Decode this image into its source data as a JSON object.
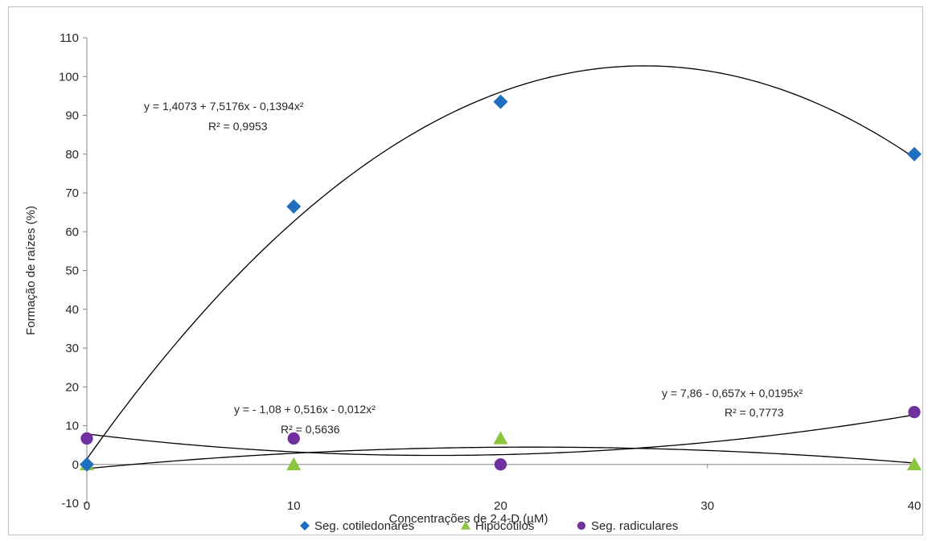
{
  "chart_data": {
    "type": "scatter",
    "xlabel": "Concentrações de 2,4-D (µM)",
    "ylabel": "Formação de raízes (%)",
    "xlim": [
      0,
      40
    ],
    "ylim": [
      -10,
      110
    ],
    "x_ticks": [
      0,
      10,
      20,
      30,
      40
    ],
    "y_ticks": [
      -10,
      0,
      10,
      20,
      30,
      40,
      50,
      60,
      70,
      80,
      90,
      100,
      110
    ],
    "grid": false,
    "legend_position": "bottom",
    "series": [
      {
        "name": "Seg. cotiledonares",
        "marker": "diamond",
        "color": "#1f6fc0",
        "x": [
          0,
          10,
          20,
          40
        ],
        "y": [
          0,
          66.5,
          93.5,
          80
        ],
        "trend": {
          "coefficients": [
            1.4073,
            7.5176,
            -0.1394
          ],
          "equation": "y = 1,4073 + 7,5176x  - 0,1394x²",
          "r2": "R² = 0,9953"
        }
      },
      {
        "name": "Hipocótilos",
        "marker": "triangle",
        "color": "#8cc63f",
        "x": [
          0,
          10,
          20,
          40
        ],
        "y": [
          0,
          0,
          6.7,
          0
        ],
        "trend": {
          "coefficients": [
            -1.08,
            0.516,
            -0.012
          ],
          "equation": "y = - 1,08 + 0,516x  - 0,012x²",
          "r2": "R² = 0,5636"
        }
      },
      {
        "name": "Seg. radiculares",
        "marker": "circle",
        "color": "#7030a0",
        "x": [
          0,
          10,
          20,
          40
        ],
        "y": [
          6.7,
          6.7,
          0,
          13.5
        ],
        "trend": {
          "coefficients": [
            7.86,
            -0.657,
            0.0195
          ],
          "equation": "y =  7,86 - 0,657x + 0,0195x²",
          "r2": "R² = 0,7773"
        }
      }
    ]
  }
}
